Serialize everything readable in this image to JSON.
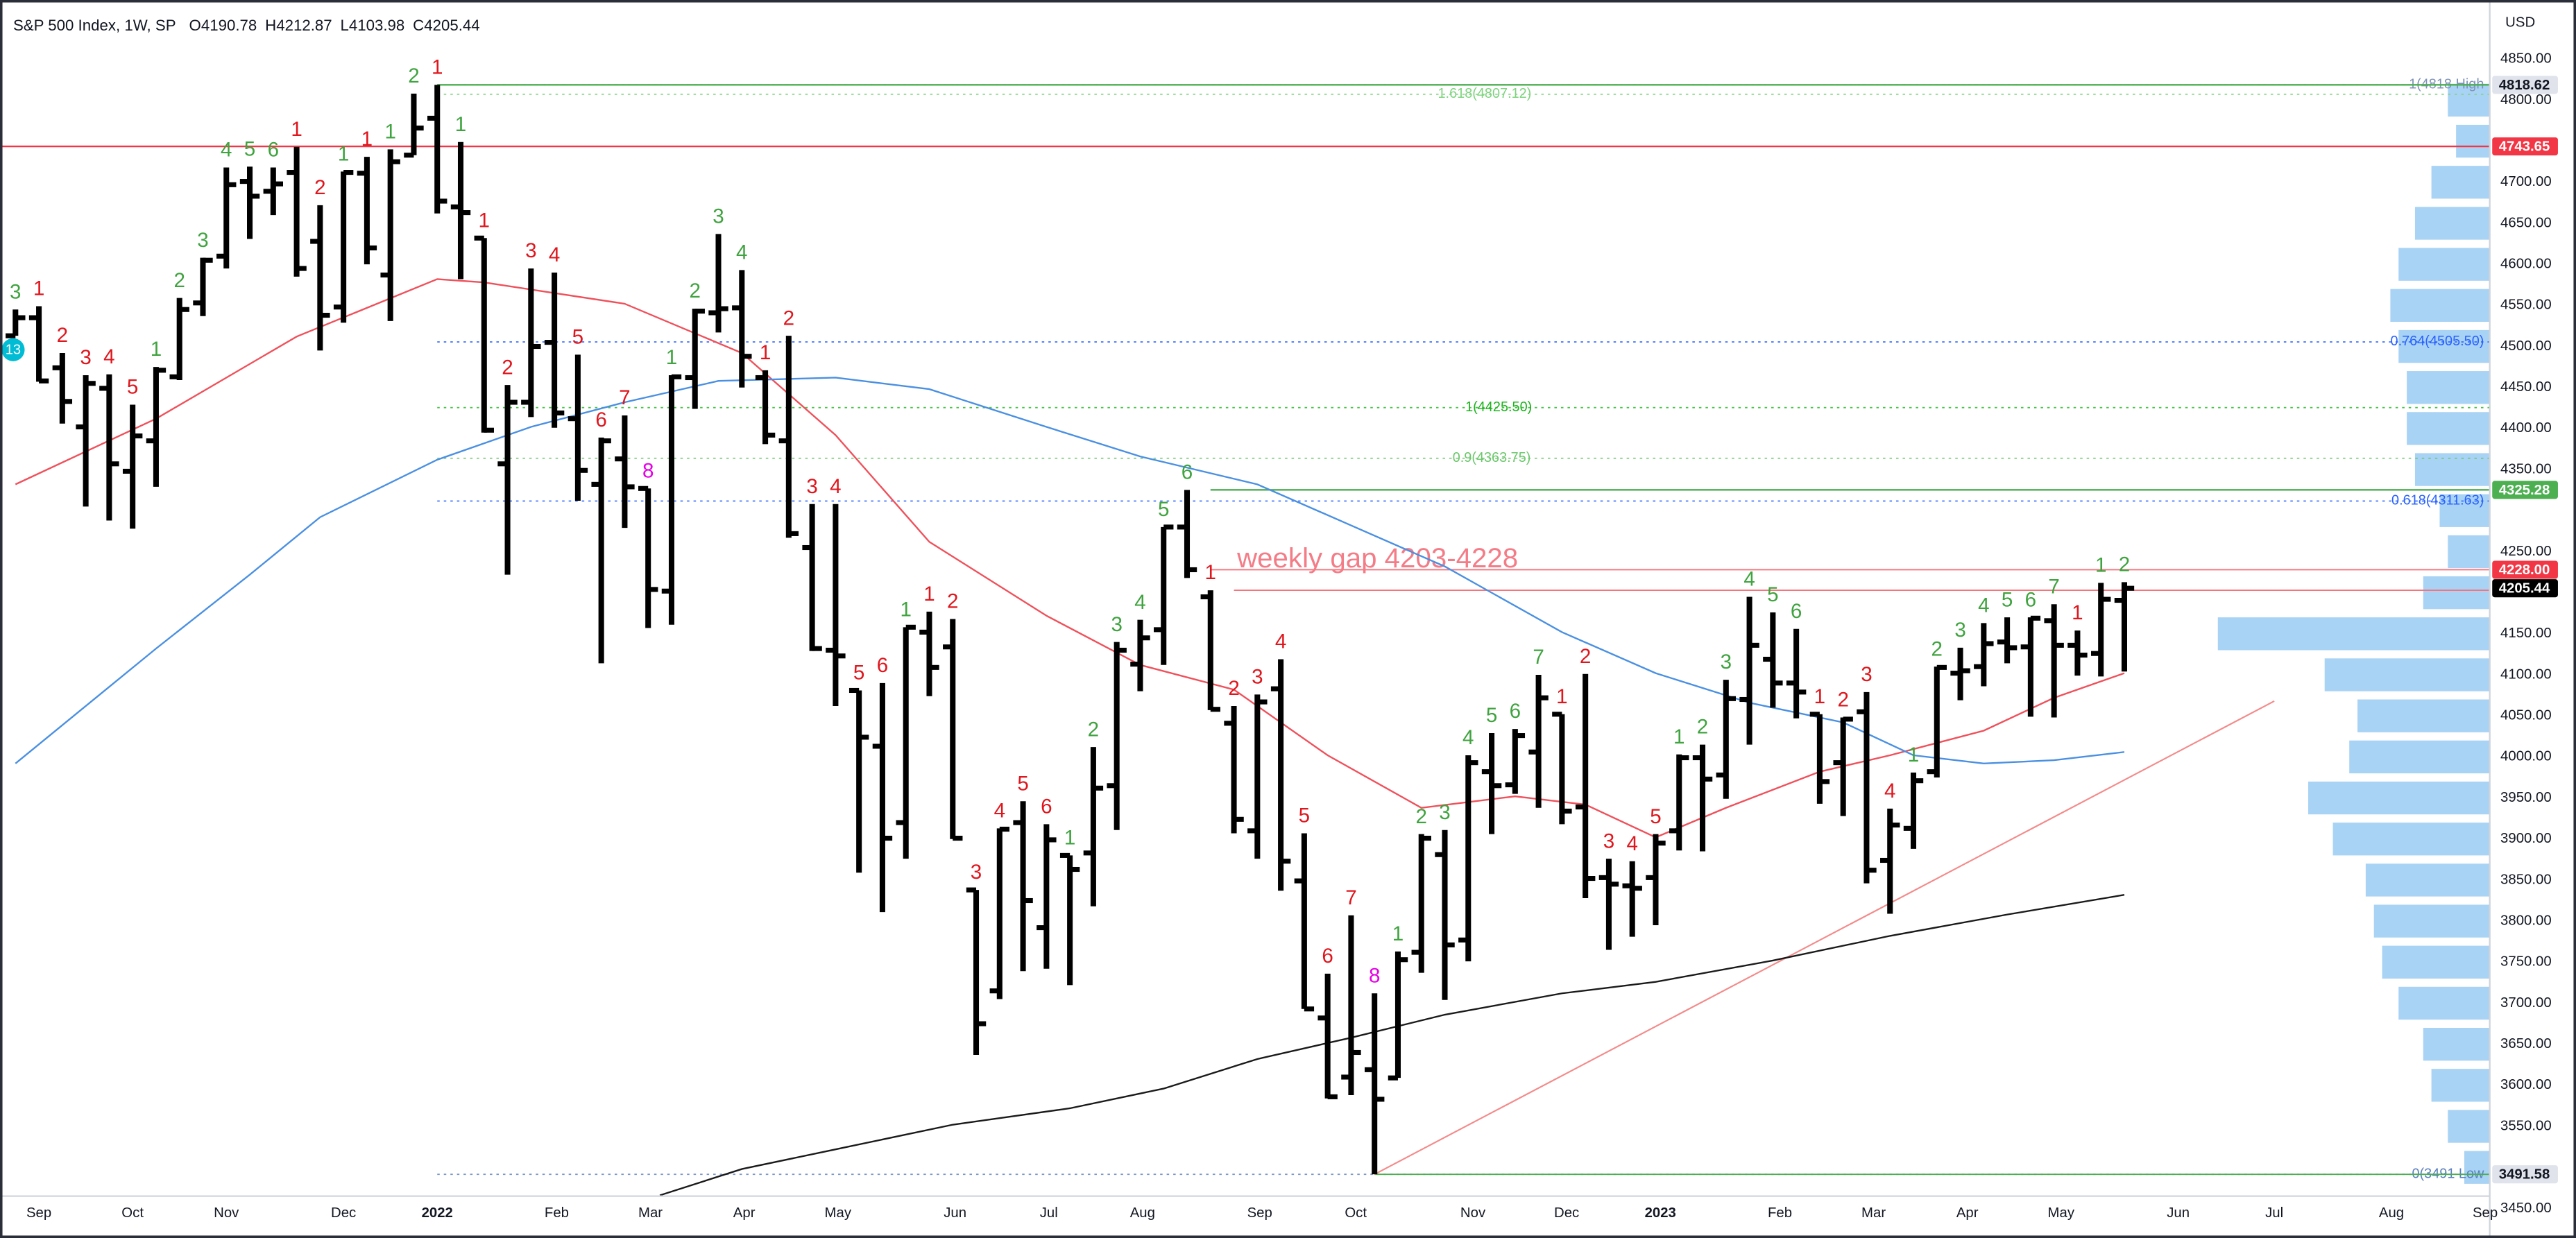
{
  "chart_data": {
    "type": "ohlc",
    "title": "S&P 500 Index, 1W, SP",
    "ohlc_keys": [
      "O",
      "H",
      "L",
      "C"
    ],
    "currency": "USD",
    "badge": "13",
    "annotation": "weekly gap 4203-4228",
    "annotation_color": "#f47c87",
    "bar_color": "#000000",
    "grid": false,
    "xlim": [
      -0.66,
      105.56
    ],
    "ylim": [
      3414,
      4922
    ],
    "xticks": [
      {
        "value": 1,
        "label": "Sep"
      },
      {
        "value": 5,
        "label": "Oct"
      },
      {
        "value": 9,
        "label": "Nov"
      },
      {
        "value": 14,
        "label": "Dec"
      },
      {
        "value": 18,
        "label": "2022"
      },
      {
        "value": 23.1,
        "label": "Feb"
      },
      {
        "value": 27.1,
        "label": "Mar"
      },
      {
        "value": 31.1,
        "label": "Apr"
      },
      {
        "value": 35.1,
        "label": "May"
      },
      {
        "value": 40.1,
        "label": "Jun"
      },
      {
        "value": 44.1,
        "label": "Jul"
      },
      {
        "value": 48.1,
        "label": "Aug"
      },
      {
        "value": 53.1,
        "label": "Sep"
      },
      {
        "value": 57.2,
        "label": "Oct"
      },
      {
        "value": 62.2,
        "label": "Nov"
      },
      {
        "value": 66.2,
        "label": "Dec"
      },
      {
        "value": 70.2,
        "label": "2023"
      },
      {
        "value": 75.3,
        "label": "Feb"
      },
      {
        "value": 79.3,
        "label": "Mar"
      },
      {
        "value": 83.3,
        "label": "Apr"
      },
      {
        "value": 87.3,
        "label": "May"
      },
      {
        "value": 92.3,
        "label": "Jun"
      },
      {
        "value": 96.4,
        "label": "Jul"
      },
      {
        "value": 101.4,
        "label": "Aug"
      },
      {
        "value": 105.4,
        "label": "Sep"
      }
    ],
    "yticks": [
      {
        "value": 4850,
        "label": "4850.00"
      },
      {
        "value": 4800,
        "label": "4800.00"
      },
      {
        "value": 4700,
        "label": "4700.00"
      },
      {
        "value": 4650,
        "label": "4650.00"
      },
      {
        "value": 4600,
        "label": "4600.00"
      },
      {
        "value": 4550,
        "label": "4550.00"
      },
      {
        "value": 4500,
        "label": "4500.00"
      },
      {
        "value": 4450,
        "label": "4450.00"
      },
      {
        "value": 4400,
        "label": "4400.00"
      },
      {
        "value": 4350,
        "label": "4350.00"
      },
      {
        "value": 4250,
        "label": "4250.00"
      },
      {
        "value": 4150,
        "label": "4150.00"
      },
      {
        "value": 4100,
        "label": "4100.00"
      },
      {
        "value": 4050,
        "label": "4050.00"
      },
      {
        "value": 4000,
        "label": "4000.00"
      },
      {
        "value": 3950,
        "label": "3950.00"
      },
      {
        "value": 3900,
        "label": "3900.00"
      },
      {
        "value": 3850,
        "label": "3850.00"
      },
      {
        "value": 3800,
        "label": "3800.00"
      },
      {
        "value": 3750,
        "label": "3750.00"
      },
      {
        "value": 3700,
        "label": "3700.00"
      },
      {
        "value": 3650,
        "label": "3650.00"
      },
      {
        "value": 3600,
        "label": "3600.00"
      },
      {
        "value": 3550,
        "label": "3550.00"
      },
      {
        "value": 3450,
        "label": "3450.00"
      }
    ],
    "x": [
      0,
      1,
      2,
      3,
      4,
      5,
      6,
      7,
      8,
      9,
      10,
      11,
      12,
      13,
      14,
      15,
      16,
      17,
      18,
      19,
      20,
      21,
      22,
      23,
      24,
      25,
      26,
      27,
      28,
      29,
      30,
      31,
      32,
      33,
      34,
      35,
      36,
      37,
      38,
      39,
      40,
      41,
      42,
      43,
      44,
      45,
      46,
      47,
      48,
      49,
      50,
      51,
      52,
      53,
      54,
      55,
      56,
      57,
      58,
      59,
      60,
      61,
      62,
      63,
      64,
      65,
      66,
      67,
      68,
      69,
      70,
      71,
      72,
      73,
      74,
      75,
      76,
      77,
      78,
      79,
      80,
      81,
      82,
      83,
      84,
      85,
      86,
      87,
      88,
      89,
      90
    ],
    "open": [
      4513,
      4535,
      4474,
      4402,
      4449,
      4348,
      4385,
      4463,
      4553,
      4610,
      4701,
      4689,
      4712,
      4628,
      4548,
      4711,
      4587,
      4733,
      4778,
      4670,
      4632,
      4357,
      4432,
      4505,
      4412,
      4332,
      4363,
      4327,
      4202,
      4462,
      4541,
      4547,
      4462,
      4385,
      4255,
      4130,
      4081,
      4013,
      3920,
      4152,
      4134,
      3838,
      3715,
      3920,
      3792,
      3880,
      3883,
      3965,
      4113,
      4155,
      4280,
      4195,
      4041,
      3910,
      4083,
      3849,
      3682,
      3610,
      3619,
      3609,
      3762,
      3881,
      3777,
      3982,
      3966,
      4006,
      4052,
      3939,
      3853,
      3843,
      3853,
      3910,
      3999,
      3978,
      4070,
      4119,
      4090,
      4052,
      3993,
      4055,
      3874,
      3913,
      3982,
      4102,
      4110,
      4140,
      4134,
      4166,
      4136,
      4126,
      4190.78
    ],
    "high": [
      4545,
      4549,
      4492,
      4465,
      4466,
      4429,
      4475,
      4559,
      4608,
      4718,
      4719,
      4718,
      4743,
      4672,
      4713,
      4731,
      4740,
      4808,
      4818.62,
      4749,
      4632,
      4453,
      4595,
      4590,
      4490,
      4389,
      4416,
      4327,
      4465,
      4546,
      4637,
      4593,
      4471,
      4513,
      4308,
      4308,
      4081,
      4090,
      4158,
      4177,
      4168,
      3838,
      3913,
      3946,
      3918,
      3880,
      4012,
      4140,
      4167,
      4280,
      4325.28,
      4203,
      4062,
      4076,
      4119,
      3907,
      3736,
      3807,
      3712,
      3763,
      3906,
      3911,
      4002,
      4029,
      4034,
      4100,
      4052,
      4101,
      3876,
      3873,
      3906,
      4003,
      4015,
      4094,
      4195,
      4176,
      4156,
      4052,
      4048,
      4079,
      3937,
      3981,
      4110,
      4133,
      4163,
      4170,
      4170,
      4186,
      4154,
      4212,
      4212.87
    ],
    "low": [
      4513,
      4457,
      4406,
      4305,
      4288,
      4278,
      4329,
      4459,
      4537,
      4595,
      4631,
      4660,
      4585,
      4495,
      4529,
      4600,
      4531,
      4733,
      4662,
      4582,
      4395,
      4222,
      4414,
      4401,
      4312,
      4114,
      4279,
      4157,
      4161,
      4424,
      4517,
      4450,
      4381,
      4267,
      4129,
      4062,
      3859,
      3811,
      3876,
      4074,
      3900,
      3637,
      3705,
      3739,
      3742,
      3722,
      3818,
      3911,
      4080,
      4112,
      4218,
      4057,
      3907,
      3876,
      3837,
      3693,
      3584,
      3588,
      3491.58,
      3609,
      3737,
      3704,
      3751,
      3906,
      3955,
      3938,
      3918,
      3828,
      3765,
      3781,
      3795,
      3886,
      3885,
      3949,
      4015,
      4060,
      4047,
      3943,
      3928,
      3846,
      3809,
      3888,
      3975,
      4069,
      4086,
      4114,
      4049,
      4048,
      4099,
      4098,
      4103.98
    ],
    "close": [
      4535,
      4458,
      4433,
      4455,
      4357,
      4391,
      4471,
      4545,
      4605,
      4697,
      4683,
      4698,
      4595,
      4538,
      4712,
      4620,
      4725,
      4766,
      4677,
      4663,
      4398,
      4432,
      4500,
      4419,
      4349,
      4385,
      4329,
      4204,
      4463,
      4543,
      4546,
      4488,
      4392,
      4272,
      4132,
      4123,
      4024,
      3901,
      4158,
      4109,
      3901,
      3675,
      3912,
      3825,
      3899,
      3863,
      3962,
      4130,
      4145,
      4280,
      4228,
      4058,
      3924,
      4067,
      3873,
      3693,
      3586,
      3640,
      3583,
      3753,
      3901,
      3771,
      3993,
      3965,
      4026,
      4072,
      3934,
      3852,
      3845,
      3840,
      3895,
      3999,
      3973,
      4071,
      4136,
      4090,
      4079,
      3970,
      4046,
      3862,
      3917,
      3971,
      4109,
      4105,
      4138,
      4133,
      4169,
      4136,
      4124,
      4192,
      4205.44
    ],
    "counts": [
      3,
      1,
      2,
      3,
      4,
      5,
      1,
      2,
      3,
      4,
      5,
      6,
      1,
      2,
      1,
      1,
      1,
      2,
      1,
      1,
      1,
      2,
      3,
      4,
      5,
      6,
      7,
      8,
      1,
      2,
      3,
      4,
      1,
      2,
      3,
      4,
      5,
      6,
      1,
      1,
      2,
      3,
      4,
      5,
      6,
      1,
      2,
      3,
      4,
      5,
      6,
      1,
      2,
      3,
      4,
      5,
      6,
      7,
      8,
      1,
      2,
      3,
      4,
      5,
      6,
      7,
      1,
      2,
      3,
      4,
      5,
      1,
      2,
      3,
      4,
      5,
      6,
      1,
      2,
      3,
      4,
      1,
      2,
      3,
      4,
      5,
      6,
      7,
      1,
      1,
      2
    ],
    "count_colors": [
      "#3fa33f",
      "#e0161d",
      "#e0161d",
      "#e0161d",
      "#e0161d",
      "#e0161d",
      "#3fa33f",
      "#3fa33f",
      "#3fa33f",
      "#3fa33f",
      "#3fa33f",
      "#3fa33f",
      "#e0161d",
      "#e0161d",
      "#3fa33f",
      "#e0161d",
      "#3fa33f",
      "#3fa33f",
      "#e0161d",
      "#3fa33f",
      "#e0161d",
      "#e0161d",
      "#e0161d",
      "#e0161d",
      "#e0161d",
      "#e0161d",
      "#e0161d",
      "#e600e6",
      "#3fa33f",
      "#3fa33f",
      "#3fa33f",
      "#3fa33f",
      "#e0161d",
      "#e0161d",
      "#e0161d",
      "#e0161d",
      "#e0161d",
      "#e0161d",
      "#3fa33f",
      "#e0161d",
      "#e0161d",
      "#e0161d",
      "#e0161d",
      "#e0161d",
      "#e0161d",
      "#3fa33f",
      "#3fa33f",
      "#3fa33f",
      "#3fa33f",
      "#3fa33f",
      "#3fa33f",
      "#e0161d",
      "#e0161d",
      "#e0161d",
      "#e0161d",
      "#e0161d",
      "#e0161d",
      "#e0161d",
      "#e600e6",
      "#3fa33f",
      "#3fa33f",
      "#3fa33f",
      "#3fa33f",
      "#3fa33f",
      "#3fa33f",
      "#3fa33f",
      "#e0161d",
      "#e0161d",
      "#e0161d",
      "#e0161d",
      "#e0161d",
      "#3fa33f",
      "#3fa33f",
      "#3fa33f",
      "#3fa33f",
      "#3fa33f",
      "#3fa33f",
      "#e0161d",
      "#e0161d",
      "#e0161d",
      "#e0161d",
      "#3fa33f",
      "#3fa33f",
      "#3fa33f",
      "#3fa33f",
      "#3fa33f",
      "#3fa33f",
      "#3fa33f",
      "#e0161d",
      "#3fa33f",
      "#3fa33f"
    ],
    "moving_averages": [
      {
        "color": "#f0505a",
        "x": [
          0,
          6,
          12,
          18,
          20,
          26,
          31,
          35,
          39,
          44,
          48,
          52,
          56,
          60,
          64,
          67,
          70,
          73,
          77,
          80,
          84,
          87,
          90
        ],
        "values": [
          4332,
          4412,
          4512,
          4582,
          4578,
          4552,
          4492,
          4392,
          4262,
          4172,
          4112,
          4082,
          4002,
          3938,
          3952,
          3942,
          3902,
          3938,
          3982,
          4002,
          4032,
          4072,
          4102
        ]
      },
      {
        "color": "#4a90e2",
        "x": [
          0,
          3,
          6,
          10,
          13,
          18,
          22,
          26,
          30,
          35,
          39,
          44,
          48,
          53,
          57,
          61,
          66,
          70,
          74,
          78,
          81,
          84,
          87,
          90
        ],
        "values": [
          3992,
          4062,
          4132,
          4222,
          4292,
          4362,
          4402,
          4432,
          4458,
          4462,
          4448,
          4402,
          4366,
          4332,
          4282,
          4232,
          4152,
          4102,
          4066,
          4042,
          4002,
          3992,
          3996,
          4006
        ]
      },
      {
        "color": "#1a1a1a",
        "x": [
          27.5,
          31,
          35,
          40,
          45,
          49,
          53,
          57,
          61,
          66,
          70,
          75,
          80,
          85,
          90
        ],
        "values": [
          3466,
          3498,
          3522,
          3552,
          3572,
          3596,
          3632,
          3658,
          3686,
          3712,
          3726,
          3752,
          3782,
          3808,
          3832
        ]
      }
    ],
    "trendline": {
      "color": "#f48a8a",
      "x": [
        58,
        96.4
      ],
      "values": [
        3491.58,
        4068
      ]
    },
    "levels": [
      {
        "value": 4818.62,
        "color": "#4caf50",
        "from": 18
      },
      {
        "value": 4743.65,
        "color": "#f23645",
        "from": -0.66
      },
      {
        "value": 4325.28,
        "color": "#4caf50",
        "from": 51
      },
      {
        "value": 4228,
        "color": "#f7727c",
        "from": 51
      },
      {
        "value": 4203,
        "color": "#f7727c",
        "from": 52
      },
      {
        "value": 3491.58,
        "color": "#4caf50",
        "from": 58
      }
    ],
    "fib_levels": [
      {
        "value": 4818.62,
        "label": "1(4818 High",
        "color": "#7f93b8",
        "from": 18
      },
      {
        "value": 4807.12,
        "label": "1.618(4807.12)",
        "color": "#7fd37f",
        "from": 18
      },
      {
        "value": 4505.5,
        "label": "0.764(4505.50)",
        "color": "#2962ff",
        "from": 18
      },
      {
        "value": 4425.5,
        "label": "1(4425.50)",
        "color": "#1db31d",
        "from": 18
      },
      {
        "value": 4363.75,
        "label": "0.9(4363.75)",
        "color": "#6cc76c",
        "from": 18
      },
      {
        "value": 4311.63,
        "label": "0.618(4311.63)",
        "color": "#2962ff",
        "from": 18
      },
      {
        "value": 3491.58,
        "label": "0(3491 Low",
        "color": "#5b7fbf",
        "from": 18
      }
    ],
    "price_tags": [
      {
        "value": 4818.62,
        "bg": "#e0e3eb",
        "fg": "#131722"
      },
      {
        "value": 4743.65,
        "bg": "#f23645",
        "fg": "#ffffff"
      },
      {
        "value": 4325.28,
        "bg": "#4caf50",
        "fg": "#ffffff"
      },
      {
        "value": 4228,
        "label": "4228.00",
        "bg": "#f23645",
        "fg": "#ffffff"
      },
      {
        "value": 4205.44,
        "bg": "#000000",
        "fg": "#ffffff"
      },
      {
        "value": 3491.58,
        "bg": "#e0e3eb",
        "fg": "#131722"
      }
    ],
    "volume_profile": {
      "color": "#8cc4f2",
      "prices": [
        3500,
        3550,
        3600,
        3650,
        3700,
        3750,
        3800,
        3850,
        3900,
        3950,
        4000,
        4050,
        4100,
        4150,
        4200,
        4250,
        4300,
        4350,
        4400,
        4450,
        4500,
        4550,
        4600,
        4650,
        4700,
        4750,
        4800
      ],
      "values": [
        15,
        25,
        35,
        40,
        55,
        65,
        70,
        75,
        95,
        110,
        85,
        80,
        100,
        165,
        40,
        25,
        30,
        45,
        50,
        50,
        55,
        60,
        55,
        45,
        35,
        20,
        25
      ]
    }
  }
}
